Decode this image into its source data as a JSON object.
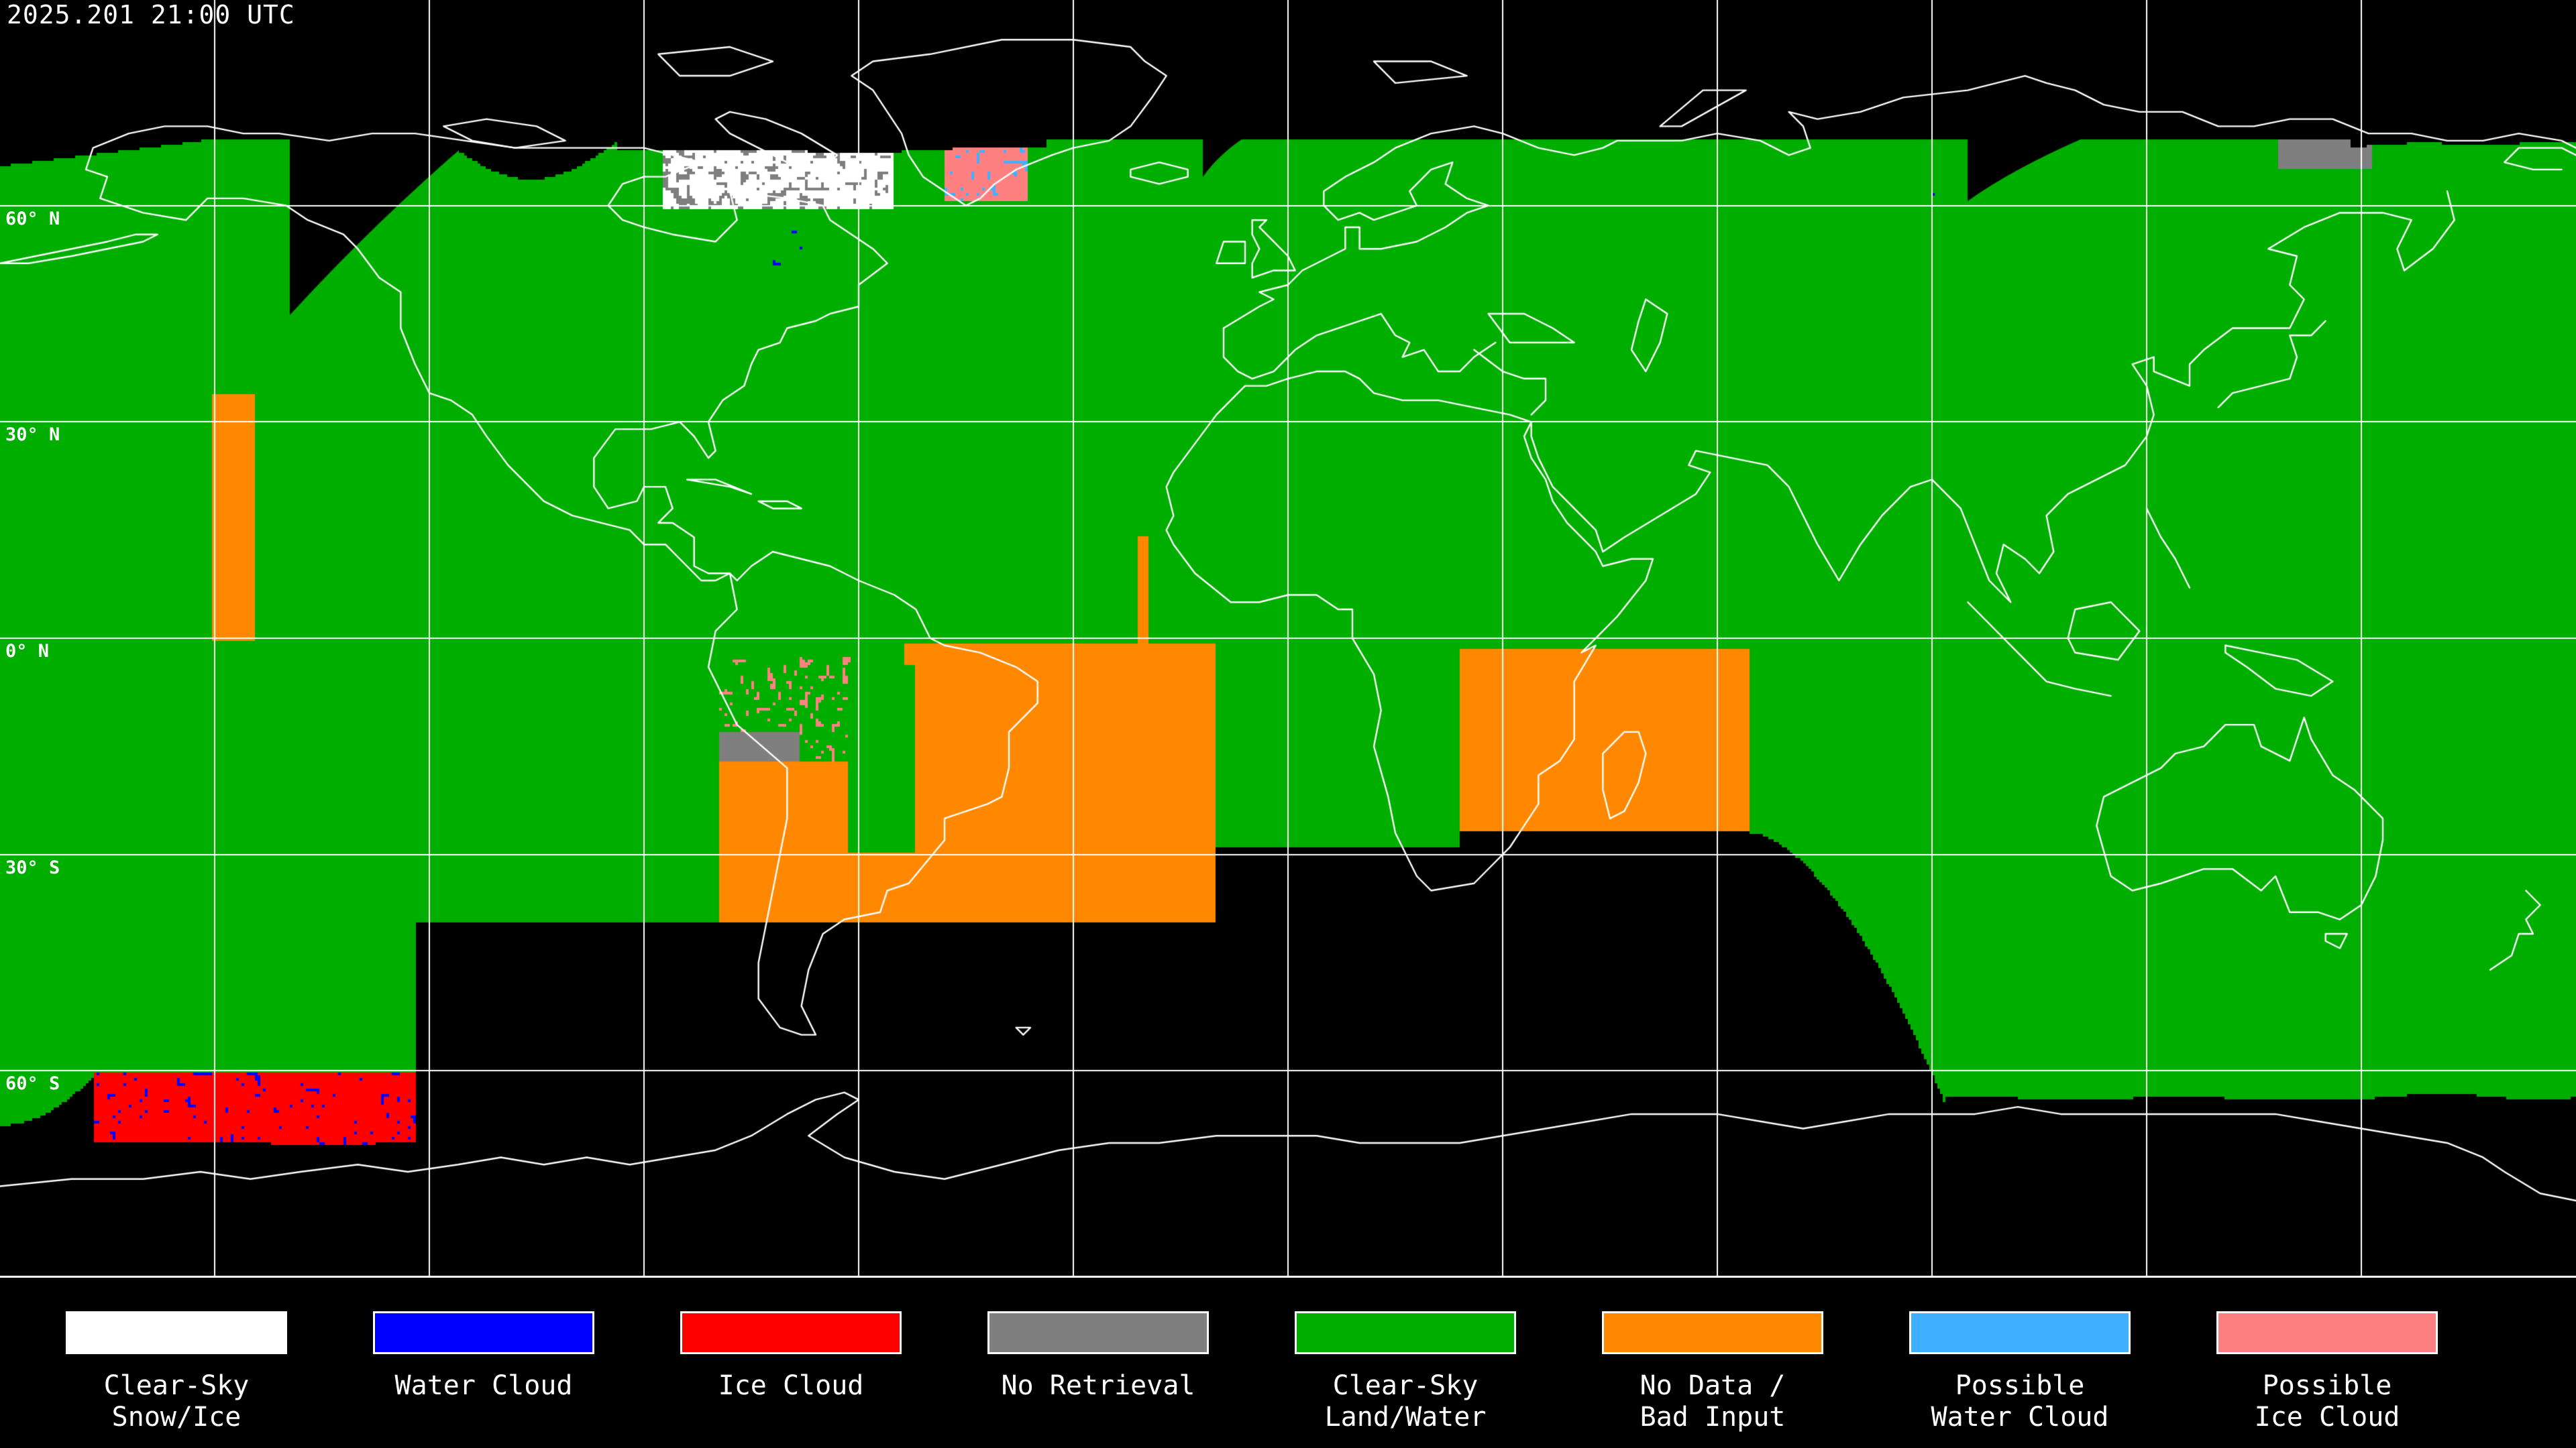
{
  "header": {
    "timestamp": "2025.201 21:00 UTC"
  },
  "map": {
    "background": "#000000",
    "coastline_color": "#FFFFFF",
    "gridline_color": "#FFFFFF",
    "graticule": {
      "lon_step_deg": 30,
      "lat_lines_deg": [
        60,
        30,
        0,
        -30,
        -60
      ]
    },
    "latitude_labels": [
      {
        "lat": 60,
        "text": "60° N"
      },
      {
        "lat": 30,
        "text": "30° N"
      },
      {
        "lat": 0,
        "text": "0° N"
      },
      {
        "lat": -30,
        "text": "30° S"
      },
      {
        "lat": -60,
        "text": "60° S"
      }
    ],
    "class_colors": {
      "clear_sky_snow_ice": "#FFFFFF",
      "water_cloud": "#0000FF",
      "ice_cloud": "#FF0000",
      "no_retrieval": "#7F7F7F",
      "clear_sky_land_water": "#00AE00",
      "no_data_bad_input": "#FF8800",
      "possible_water_cloud": "#3FB0FF",
      "possible_ice_cloud": "#FF8080",
      "no_coverage": "#000000"
    }
  },
  "legend": {
    "items": [
      {
        "name": "clear-sky-snow-ice",
        "color": "#FFFFFF",
        "lines": [
          "Clear-Sky",
          "Snow/Ice"
        ]
      },
      {
        "name": "water-cloud",
        "color": "#0000FF",
        "lines": [
          "Water Cloud"
        ]
      },
      {
        "name": "ice-cloud",
        "color": "#FF0000",
        "lines": [
          "Ice Cloud"
        ]
      },
      {
        "name": "no-retrieval",
        "color": "#7F7F7F",
        "lines": [
          "No Retrieval"
        ]
      },
      {
        "name": "clear-sky-land-water",
        "color": "#00AE00",
        "lines": [
          "Clear-Sky",
          "Land/Water"
        ]
      },
      {
        "name": "no-data-bad-input",
        "color": "#FF8800",
        "lines": [
          "No Data /",
          "Bad Input"
        ]
      },
      {
        "name": "possible-water-cloud",
        "color": "#3FB0FF",
        "lines": [
          "Possible",
          "Water Cloud"
        ]
      },
      {
        "name": "possible-ice-cloud",
        "color": "#FF8080",
        "lines": [
          "Possible",
          "Ice Cloud"
        ]
      }
    ]
  }
}
